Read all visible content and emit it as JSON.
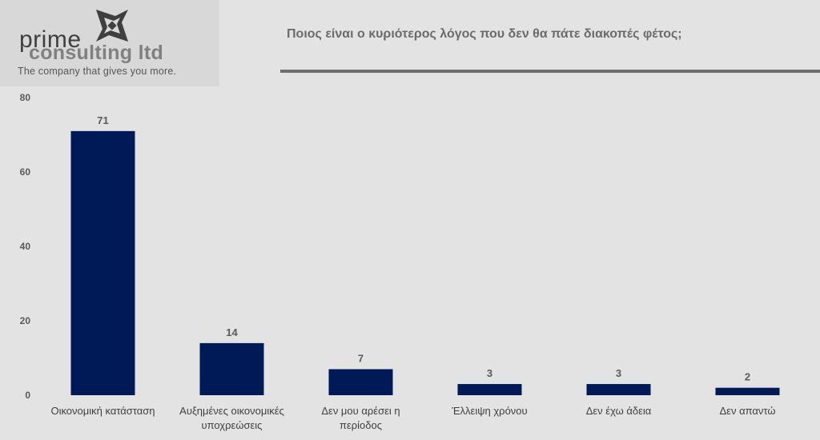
{
  "logo": {
    "line1": "prime",
    "line2": "consulting ltd",
    "tagline": "The company that gives you more."
  },
  "chart_data": {
    "type": "bar",
    "title": "Ποιος είναι ο κυριότερος λόγος που δεν θα πάτε διακοπές φέτος;",
    "categories": [
      [
        "Οικονομική κατάσταση"
      ],
      [
        "Αυξημένες οικονομικές",
        "υποχρεώσεις"
      ],
      [
        "Δεν μου αρέσει η",
        "περίοδος"
      ],
      [
        "Έλλειψη χρόνου"
      ],
      [
        "Δεν έχω άδεια"
      ],
      [
        "Δεν απαντώ"
      ]
    ],
    "values": [
      71,
      14,
      7,
      3,
      3,
      2
    ],
    "ylim": [
      0,
      80
    ],
    "yticks": [
      0,
      20,
      40,
      60,
      80
    ],
    "grid": false,
    "data_labels": true,
    "bar_color": "#001a57"
  }
}
